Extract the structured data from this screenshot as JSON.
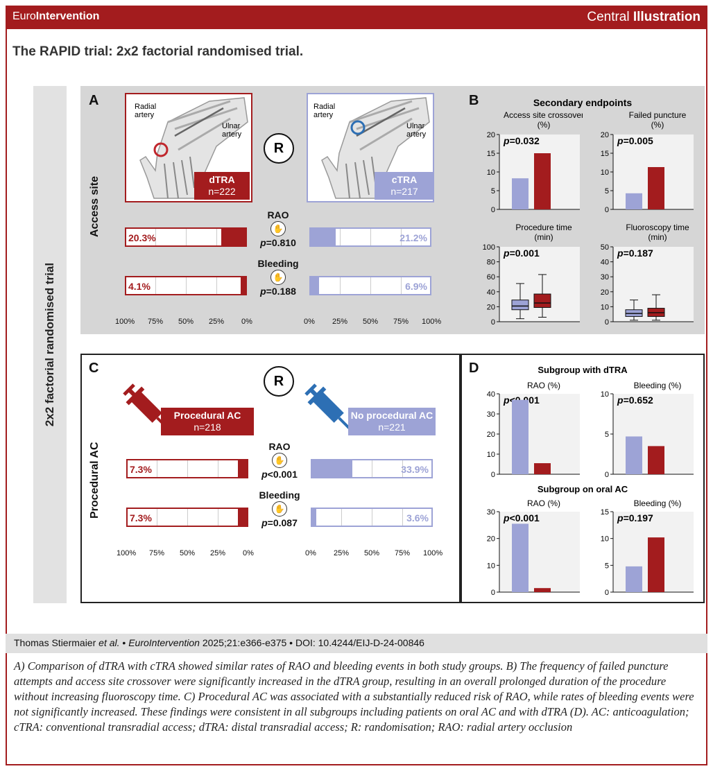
{
  "header": {
    "journal_plain": "Euro",
    "journal_bold": "Intervention",
    "section_plain": "Central ",
    "section_bold": "Illustration"
  },
  "title": "The RAPID trial: 2x2 factorial randomised trial.",
  "side_label": "2x2 factorial randomised trial",
  "colors": {
    "red": "#a31c1e",
    "lilac": "#9da3d6",
    "blue": "#2d6fb4",
    "grey": "#d6d6d6"
  },
  "panel_a": {
    "label": "A",
    "row_label": "Access site",
    "left": {
      "name": "dTRA",
      "n": "n=222",
      "artery1": "Radial\nartery",
      "artery2": "Ulnar\nartery"
    },
    "right": {
      "name": "cTRA",
      "n": "n=217",
      "artery1": "Radial\nartery",
      "artery2": "Ulnar\nartery"
    },
    "randomise": "R",
    "outcomes": [
      {
        "name": "RAO",
        "p_label": "p",
        "p_value": "=0.810",
        "left_pct": "20.3%",
        "left_val": 20.3,
        "right_pct": "21.2%",
        "right_val": 21.2
      },
      {
        "name": "Bleeding",
        "p_label": "p",
        "p_value": "=0.188",
        "left_pct": "4.1%",
        "left_val": 4.1,
        "right_pct": "6.9%",
        "right_val": 6.9
      }
    ],
    "left_ticks": [
      "100%",
      "75%",
      "50%",
      "25%",
      "0%"
    ],
    "right_ticks": [
      "0%",
      "25%",
      "50%",
      "75%",
      "100%"
    ]
  },
  "panel_c": {
    "label": "C",
    "row_label": "Procedural AC",
    "left": {
      "name": "Procedural AC",
      "n": "n=218"
    },
    "right": {
      "name": "No procedural AC",
      "n": "n=221"
    },
    "randomise": "R",
    "outcomes": [
      {
        "name": "RAO",
        "p_label": "p",
        "p_value": "<0.001",
        "left_pct": "7.3%",
        "left_val": 7.3,
        "right_pct": "33.9%",
        "right_val": 33.9
      },
      {
        "name": "Bleeding",
        "p_label": "p",
        "p_value": "=0.087",
        "left_pct": "7.3%",
        "left_val": 7.3,
        "right_pct": "3.6%",
        "right_val": 3.6
      }
    ],
    "left_ticks": [
      "100%",
      "75%",
      "50%",
      "25%",
      "0%"
    ],
    "right_ticks": [
      "0%",
      "25%",
      "50%",
      "75%",
      "100%"
    ]
  },
  "panel_b": {
    "label": "B",
    "heading": "Secondary endpoints"
  },
  "panel_d": {
    "label": "D",
    "heading1": "Subgroup with dTRA",
    "heading2": "Subgroup on oral AC"
  },
  "chart_data": [
    {
      "type": "bar",
      "title": "Access site crossover (%)",
      "p_label": "p",
      "p_value": "=0.032",
      "ylim": [
        0,
        20
      ],
      "yticks": [
        0,
        5,
        10,
        15,
        20
      ],
      "series": [
        {
          "name": "cTRA",
          "values": [
            8.3
          ]
        },
        {
          "name": "dTRA",
          "values": [
            15.0
          ]
        }
      ]
    },
    {
      "type": "bar",
      "title": "Failed puncture (%)",
      "p_label": "p",
      "p_value": "=0.005",
      "ylim": [
        0,
        20
      ],
      "yticks": [
        0,
        5,
        10,
        15,
        20
      ],
      "series": [
        {
          "name": "cTRA",
          "values": [
            4.3
          ]
        },
        {
          "name": "dTRA",
          "values": [
            11.3
          ]
        }
      ]
    },
    {
      "type": "box",
      "title": "Procedure time (min)",
      "p_label": "p",
      "p_value": "=0.001",
      "ylim": [
        0,
        100
      ],
      "yticks": [
        0,
        20,
        40,
        60,
        80,
        100
      ],
      "series": [
        {
          "name": "cTRA",
          "min": 4,
          "q1": 16,
          "median": 21,
          "q3": 29,
          "max": 51
        },
        {
          "name": "dTRA",
          "min": 6,
          "q1": 19,
          "median": 25,
          "q3": 37,
          "max": 63
        }
      ]
    },
    {
      "type": "box",
      "title": "Fluoroscopy time (min)",
      "p_label": "p",
      "p_value": "=0.187",
      "ylim": [
        0,
        50
      ],
      "yticks": [
        0,
        10,
        20,
        30,
        40,
        50
      ],
      "series": [
        {
          "name": "cTRA",
          "min": 1,
          "q1": 3.5,
          "median": 5.5,
          "q3": 8,
          "max": 14.5
        },
        {
          "name": "dTRA",
          "min": 1,
          "q1": 3.5,
          "median": 6,
          "q3": 9,
          "max": 18
        }
      ]
    },
    {
      "type": "bar",
      "title": "RAO (%)",
      "group": "Subgroup with dTRA",
      "p_label": "p",
      "p_value": "<0.001",
      "ylim": [
        0,
        40
      ],
      "yticks": [
        0,
        10,
        20,
        30,
        40
      ],
      "series": [
        {
          "name": "No procedural AC",
          "values": [
            37
          ]
        },
        {
          "name": "Procedural AC",
          "values": [
            5.5
          ]
        }
      ]
    },
    {
      "type": "bar",
      "title": "Bleeding (%)",
      "group": "Subgroup with dTRA",
      "p_label": "p",
      "p_value": "=0.652",
      "ylim": [
        0,
        10
      ],
      "yticks": [
        0,
        5,
        10
      ],
      "series": [
        {
          "name": "No procedural AC",
          "values": [
            4.7
          ]
        },
        {
          "name": "Procedural AC",
          "values": [
            3.5
          ]
        }
      ]
    },
    {
      "type": "bar",
      "title": "RAO (%)",
      "group": "Subgroup on oral AC",
      "p_label": "p",
      "p_value": "<0.001",
      "ylim": [
        0,
        30
      ],
      "yticks": [
        0,
        10,
        20,
        30
      ],
      "series": [
        {
          "name": "No procedural AC",
          "values": [
            25.5
          ]
        },
        {
          "name": "Procedural AC",
          "values": [
            1.5
          ]
        }
      ]
    },
    {
      "type": "bar",
      "title": "Bleeding (%)",
      "group": "Subgroup on oral AC",
      "p_label": "p",
      "p_value": "=0.197",
      "ylim": [
        0,
        15
      ],
      "yticks": [
        0,
        5,
        10,
        15
      ],
      "series": [
        {
          "name": "No procedural AC",
          "values": [
            4.8
          ]
        },
        {
          "name": "Procedural AC",
          "values": [
            10.2
          ]
        }
      ]
    }
  ],
  "footer": {
    "authors": "Thomas Stiermaier",
    "etal": " et al.",
    "journal": "EuroIntervention",
    "ref": " 2025;21:e366-e375 • DOI: 10.4244/EIJ-D-24-00846"
  },
  "caption": "A) Comparison of dTRA with cTRA showed similar rates of RAO and bleeding events in both study groups. B) The frequency of failed puncture attempts and access site crossover were significantly increased in the dTRA group, resulting in an overall prolonged duration of the procedure without increasing fluoroscopy time. C) Procedural AC was associated with a substantially reduced risk of RAO, while rates of bleeding events were not significantly increased. These findings were consistent in all subgroups including patients on oral AC and with dTRA (D). AC: anticoagulation; cTRA: conventional transradial access; dTRA: distal transradial access; R: randomisation; RAO: radial artery occlusion"
}
